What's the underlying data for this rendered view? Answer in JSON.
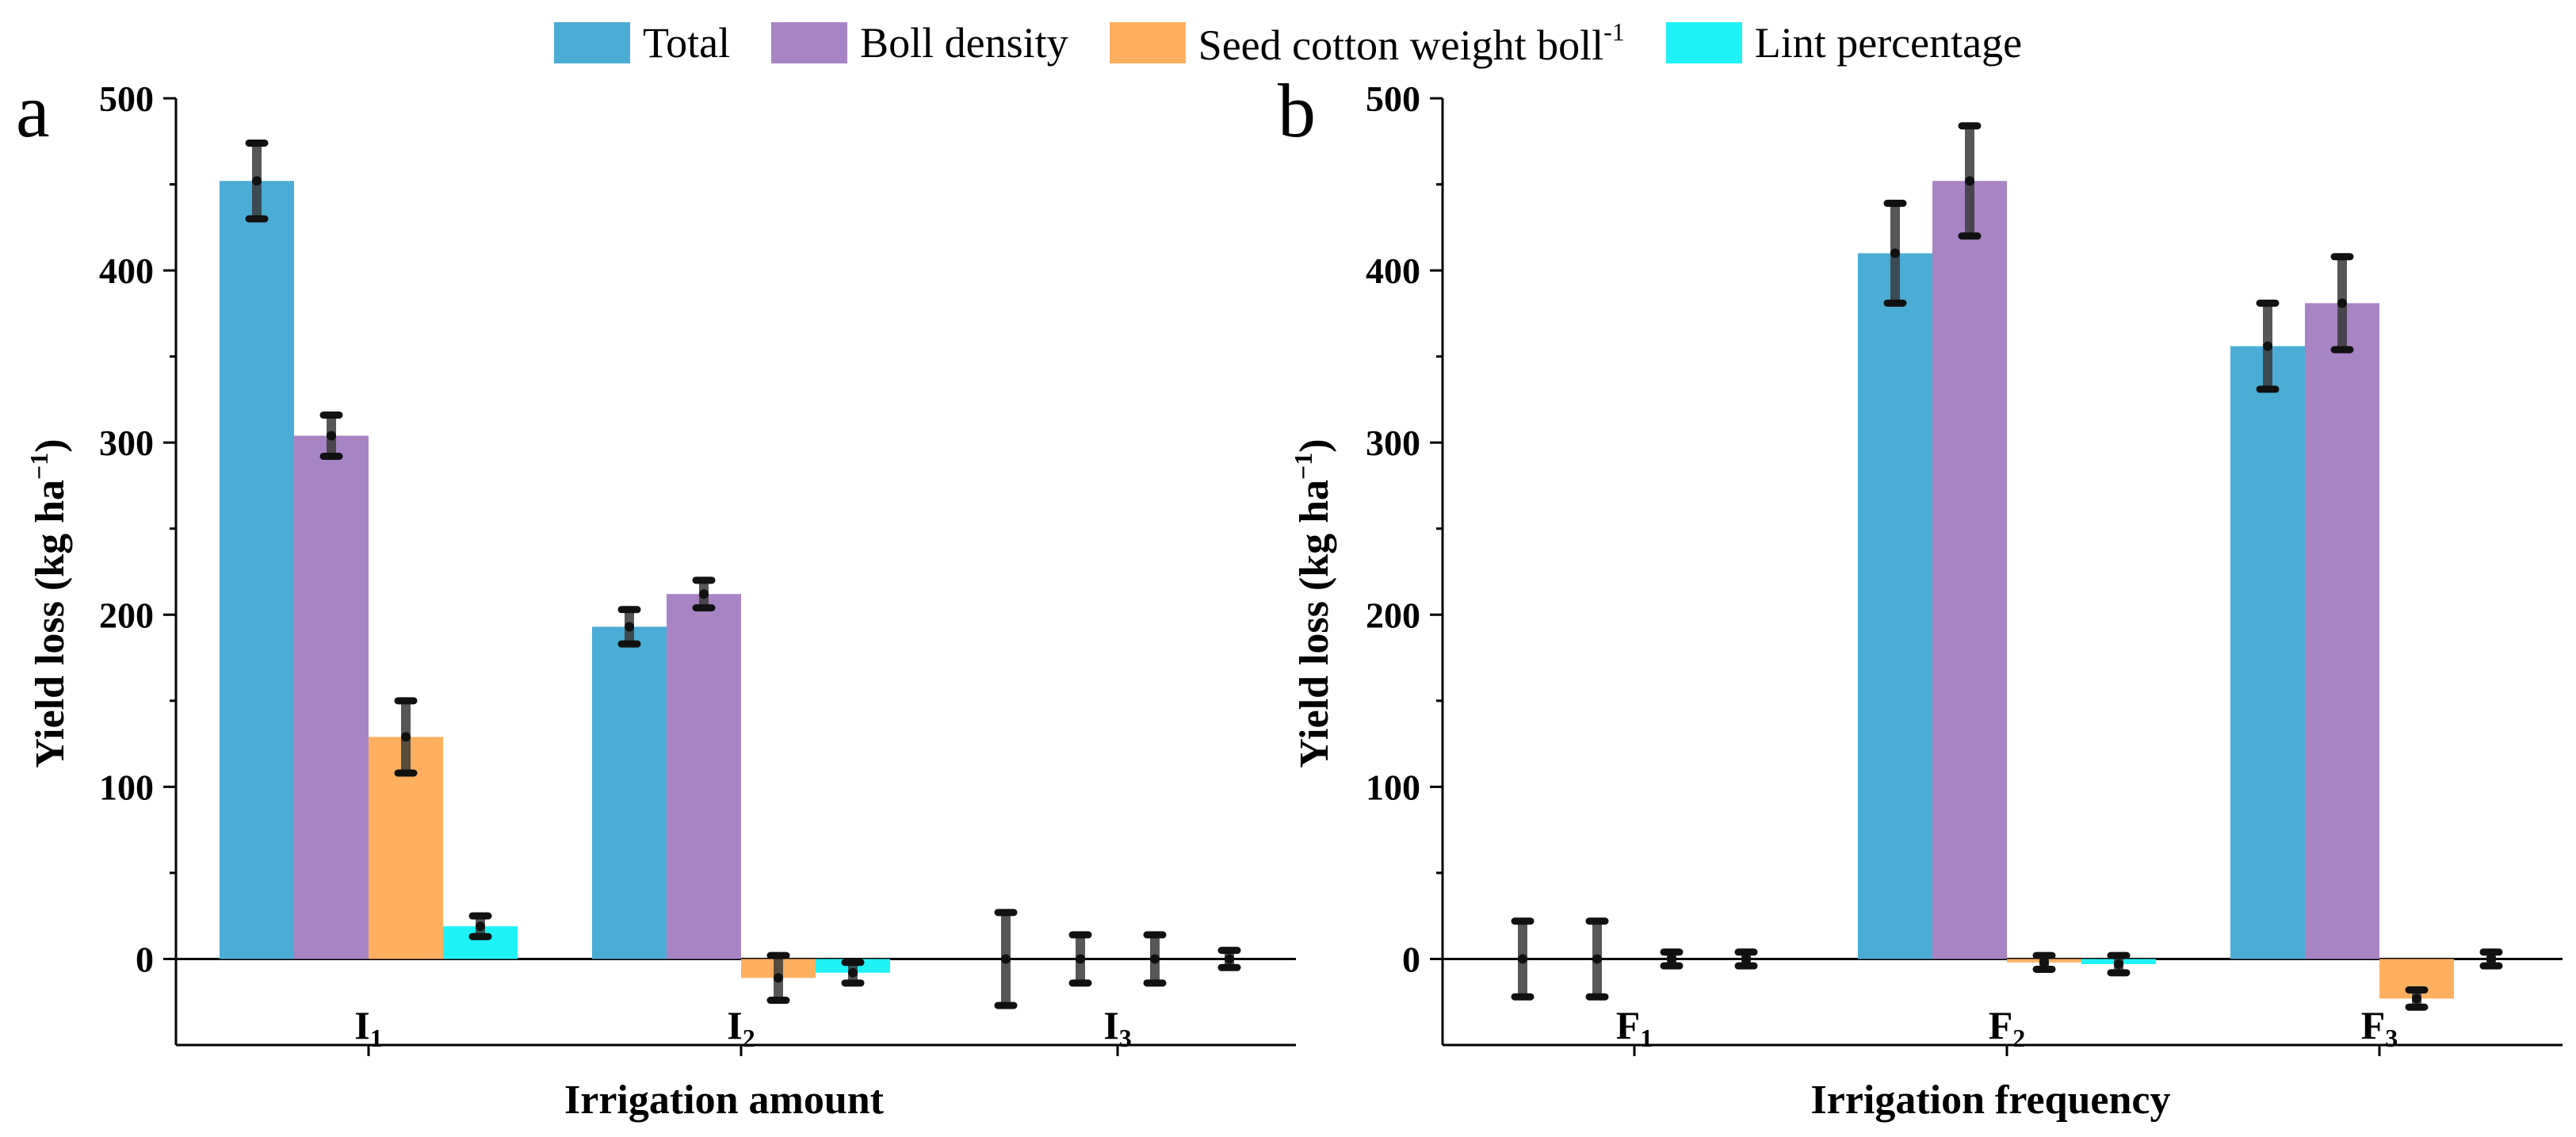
{
  "legend": {
    "items": [
      {
        "label": "Total",
        "color": "#4badd6"
      },
      {
        "label": "Boll density",
        "color": "#a984c4"
      },
      {
        "label": "Seed cotton weight boll",
        "superscript": "-1",
        "color": "#ffb05e"
      },
      {
        "label": "Lint percentage",
        "color": "#1ff2f7"
      }
    ]
  },
  "chart_data": [
    {
      "type": "bar",
      "panel_label": "a",
      "title": "",
      "xlabel": "Irrigation amount",
      "ylabel": "Yield loss (kg ha",
      "ylabel_superscript": "−1",
      "ylabel_suffix": ")",
      "ylim": [
        -50,
        500
      ],
      "yticks": [
        0,
        100,
        200,
        300,
        400,
        500
      ],
      "ytick_labels": [
        "0",
        "100",
        "200",
        "300",
        "400",
        "500"
      ],
      "categories": [
        {
          "main": "I",
          "sub": "1"
        },
        {
          "main": "I",
          "sub": "2"
        },
        {
          "main": "I",
          "sub": "3"
        }
      ],
      "series": [
        {
          "name": "Total",
          "values": [
            452,
            193,
            0
          ],
          "errors": [
            22,
            10,
            27
          ]
        },
        {
          "name": "Boll density",
          "values": [
            304,
            212,
            0
          ],
          "errors": [
            12,
            8,
            14
          ]
        },
        {
          "name": "Seed cotton weight boll-1",
          "values": [
            129,
            -11,
            0
          ],
          "errors": [
            21,
            13,
            14
          ]
        },
        {
          "name": "Lint percentage",
          "values": [
            19,
            -8,
            0
          ],
          "errors": [
            6,
            6,
            5
          ]
        }
      ]
    },
    {
      "type": "bar",
      "panel_label": "b",
      "title": "",
      "xlabel": "Irrigation frequency",
      "ylabel": "Yield loss (kg ha",
      "ylabel_superscript": "−1",
      "ylabel_suffix": ")",
      "ylim": [
        -50,
        500
      ],
      "yticks": [
        0,
        100,
        200,
        300,
        400,
        500
      ],
      "ytick_labels": [
        "0",
        "100",
        "200",
        "300",
        "400",
        "500"
      ],
      "categories": [
        {
          "main": "F",
          "sub": "1"
        },
        {
          "main": "F",
          "sub": "2"
        },
        {
          "main": "F",
          "sub": "3"
        }
      ],
      "series": [
        {
          "name": "Total",
          "values": [
            0,
            410,
            356
          ],
          "errors": [
            22,
            29,
            25
          ]
        },
        {
          "name": "Boll density",
          "values": [
            0,
            452,
            381
          ],
          "errors": [
            22,
            32,
            27
          ]
        },
        {
          "name": "Seed cotton weight boll-1",
          "values": [
            0,
            -2,
            -23
          ],
          "errors": [
            4,
            4,
            5
          ]
        },
        {
          "name": "Lint percentage",
          "values": [
            0,
            -3,
            0
          ],
          "errors": [
            4,
            5,
            4
          ]
        }
      ]
    }
  ]
}
